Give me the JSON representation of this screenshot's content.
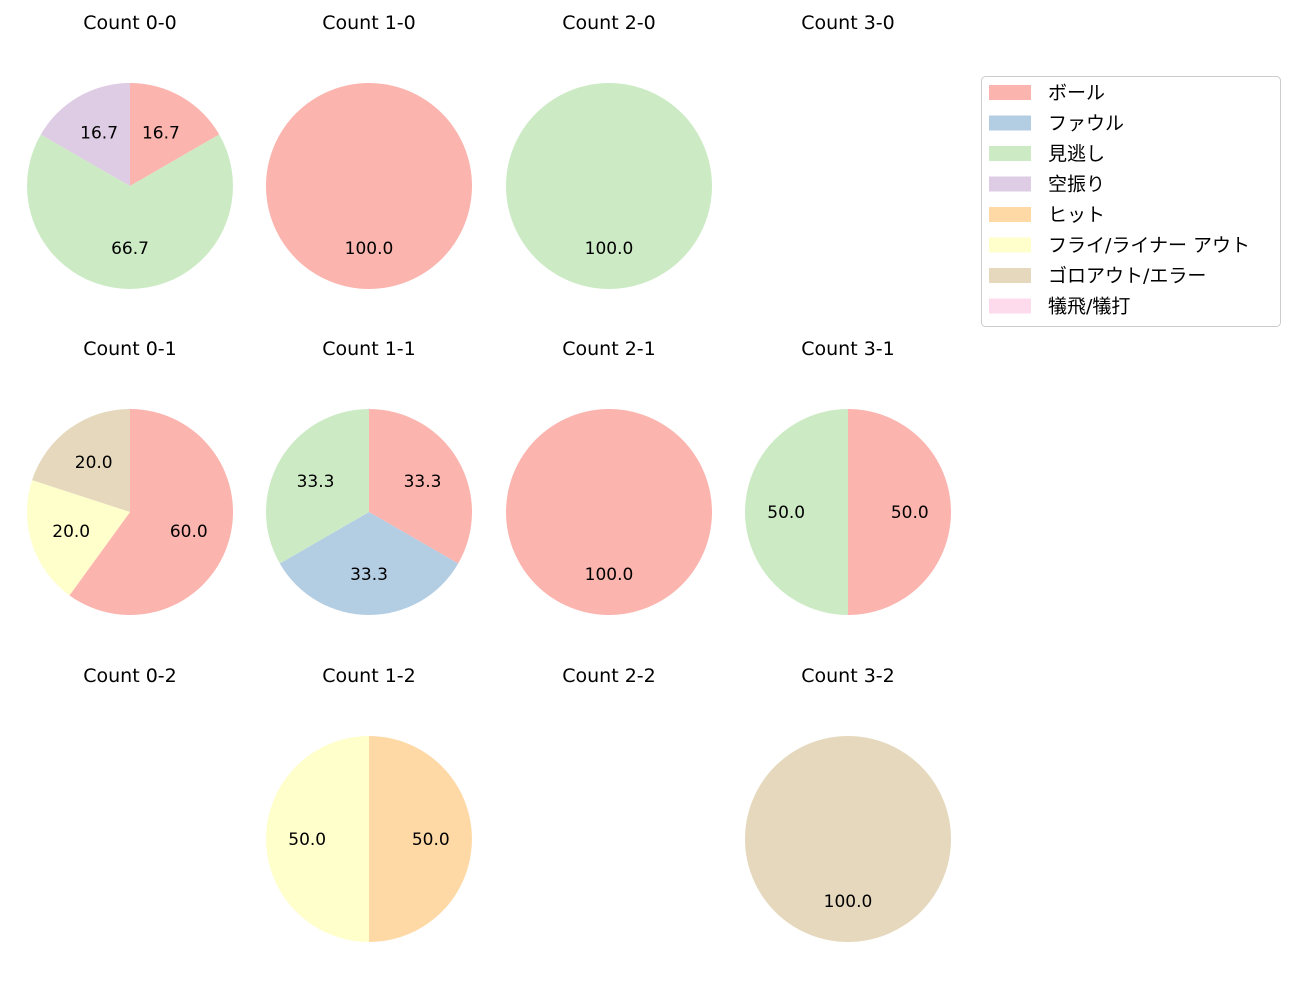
{
  "chart_data": {
    "type": "pie",
    "categories": [
      "ボール",
      "ファウル",
      "見逃し",
      "空振り",
      "ヒット",
      "フライ/ライナー アウト",
      "ゴロアウト/エラー",
      "犠飛/犠打"
    ],
    "colors": [
      "#fbb4ae",
      "#b3cde3",
      "#ccebc5",
      "#decbe4",
      "#fed9a6",
      "#ffffcc",
      "#e5d8bd",
      "#fddaec"
    ],
    "legend_placement": "top-right",
    "charts": [
      {
        "title": "Count 0-0",
        "values": [
          1,
          0,
          4,
          1,
          0,
          0,
          0,
          0
        ],
        "labels": [
          "16.7",
          "",
          "66.7",
          "16.7",
          "",
          "",
          "",
          ""
        ]
      },
      {
        "title": "Count 1-0",
        "values": [
          1,
          0,
          0,
          0,
          0,
          0,
          0,
          0
        ],
        "labels": [
          "100.0",
          "",
          "",
          "",
          "",
          "",
          "",
          ""
        ]
      },
      {
        "title": "Count 2-0",
        "values": [
          0,
          0,
          1,
          0,
          0,
          0,
          0,
          0
        ],
        "labels": [
          "",
          "",
          "100.0",
          "",
          "",
          "",
          "",
          ""
        ]
      },
      {
        "title": "Count 3-0",
        "values": [
          0,
          0,
          0,
          0,
          0,
          0,
          0,
          0
        ],
        "labels": [
          "",
          "",
          "",
          "",
          "",
          "",
          "",
          ""
        ]
      },
      {
        "title": "Count 0-1",
        "values": [
          3,
          0,
          0,
          0,
          0,
          1,
          1,
          0
        ],
        "labels": [
          "60.0",
          "",
          "",
          "",
          "",
          "20.0",
          "20.0",
          ""
        ]
      },
      {
        "title": "Count 1-1",
        "values": [
          1,
          1,
          1,
          0,
          0,
          0,
          0,
          0
        ],
        "labels": [
          "33.3",
          "33.3",
          "33.3",
          "",
          "",
          "",
          "",
          ""
        ]
      },
      {
        "title": "Count 2-1",
        "values": [
          1,
          0,
          0,
          0,
          0,
          0,
          0,
          0
        ],
        "labels": [
          "100.0",
          "",
          "",
          "",
          "",
          "",
          "",
          ""
        ]
      },
      {
        "title": "Count 3-1",
        "values": [
          1,
          0,
          1,
          0,
          0,
          0,
          0,
          0
        ],
        "labels": [
          "50.0",
          "",
          "50.0",
          "",
          "",
          "",
          "",
          ""
        ]
      },
      {
        "title": "Count 0-2",
        "values": [
          0,
          0,
          0,
          0,
          0,
          0,
          0,
          0
        ],
        "labels": [
          "",
          "",
          "",
          "",
          "",
          "",
          "",
          ""
        ]
      },
      {
        "title": "Count 1-2",
        "values": [
          0,
          0,
          0,
          0,
          1,
          1,
          0,
          0
        ],
        "labels": [
          "",
          "",
          "",
          "",
          "50.0",
          "50.0",
          "",
          ""
        ]
      },
      {
        "title": "Count 2-2",
        "values": [
          0,
          0,
          0,
          0,
          0,
          0,
          0,
          0
        ],
        "labels": [
          "",
          "",
          "",
          "",
          "",
          "",
          "",
          ""
        ]
      },
      {
        "title": "Count 3-2",
        "values": [
          0,
          0,
          0,
          0,
          0,
          0,
          1,
          0
        ],
        "labels": [
          "",
          "",
          "",
          "",
          "",
          "",
          "100.0",
          ""
        ]
      }
    ]
  }
}
